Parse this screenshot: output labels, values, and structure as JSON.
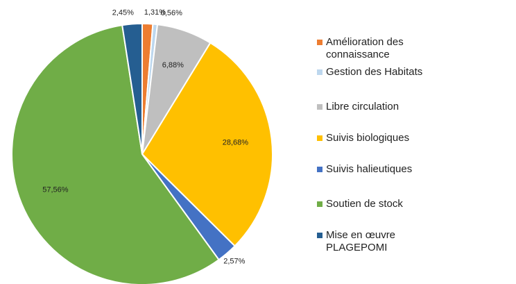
{
  "chart_data": {
    "type": "pie",
    "categories": [
      "Amélioration des connaissance",
      "Gestion des Habitats",
      "Libre circulation",
      "Suivis biologiques",
      "Suivis halieutiques",
      "Soutien de stock",
      "Mise en œuvre PLAGEPOMI"
    ],
    "values": [
      1.31,
      0.56,
      6.88,
      28.68,
      2.57,
      57.56,
      2.45
    ],
    "value_labels": [
      "1,31%",
      "0,56%",
      "6,88%",
      "28,68%",
      "2,57%",
      "57,56%",
      "2,45%"
    ],
    "colors": [
      "#ed7d31",
      "#bdd7ee",
      "#bfbfbf",
      "#ffc000",
      "#4472c4",
      "#70ad47",
      "#255e91"
    ],
    "legend": "right"
  }
}
